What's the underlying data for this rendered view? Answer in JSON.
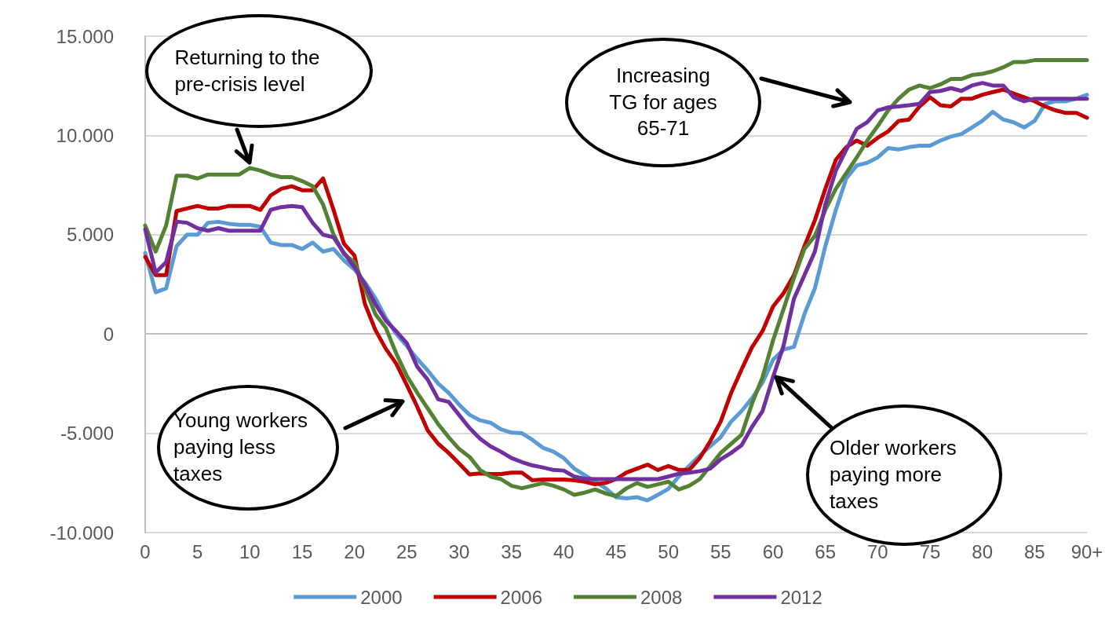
{
  "chart_data": {
    "type": "line",
    "categories": [
      "0",
      null,
      null,
      null,
      null,
      "5",
      null,
      null,
      null,
      null,
      "10",
      null,
      null,
      null,
      null,
      "15",
      null,
      null,
      null,
      null,
      "20",
      null,
      null,
      null,
      null,
      "25",
      null,
      null,
      null,
      null,
      "30",
      null,
      null,
      null,
      null,
      "35",
      null,
      null,
      null,
      null,
      "40",
      null,
      null,
      null,
      null,
      "45",
      null,
      null,
      null,
      null,
      "50",
      null,
      null,
      null,
      null,
      "55",
      null,
      null,
      null,
      null,
      "60",
      null,
      null,
      null,
      null,
      "65",
      null,
      null,
      null,
      null,
      "70",
      null,
      null,
      null,
      null,
      "75",
      null,
      null,
      null,
      null,
      "80",
      null,
      null,
      null,
      null,
      "85",
      null,
      null,
      null,
      null,
      "90+"
    ],
    "series": [
      {
        "name": "2000",
        "color": "#5b9bd5",
        "values": [
          4080,
          2100,
          2300,
          4420,
          5000,
          5000,
          5600,
          5650,
          5550,
          5500,
          5500,
          5400,
          4600,
          4480,
          4480,
          4280,
          4600,
          4150,
          4280,
          3700,
          3250,
          2600,
          1800,
          800,
          0,
          -600,
          -1260,
          -1840,
          -2500,
          -2960,
          -3560,
          -4070,
          -4350,
          -4470,
          -4800,
          -4970,
          -5000,
          -5330,
          -5730,
          -5920,
          -6250,
          -6780,
          -7110,
          -7440,
          -7770,
          -8220,
          -8280,
          -8220,
          -8380,
          -8100,
          -7800,
          -7180,
          -6640,
          -6120,
          -5650,
          -5200,
          -4410,
          -3880,
          -3230,
          -2440,
          -1300,
          -790,
          -650,
          1000,
          2300,
          4420,
          6250,
          7830,
          8490,
          8620,
          8890,
          9360,
          9290,
          9410,
          9480,
          9480,
          9740,
          9940,
          10070,
          10400,
          10730,
          11190,
          10800,
          10660,
          10400,
          10730,
          11590,
          11720,
          11720,
          11850,
          12050
        ]
      },
      {
        "name": "2006",
        "color": "#c00000",
        "values": [
          3880,
          2960,
          2960,
          6190,
          6320,
          6450,
          6320,
          6320,
          6450,
          6450,
          6450,
          6250,
          6980,
          7310,
          7440,
          7240,
          7240,
          7830,
          6250,
          4540,
          3950,
          1510,
          200,
          -750,
          -1500,
          -2570,
          -3670,
          -4860,
          -5530,
          -5990,
          -6520,
          -7070,
          -7020,
          -7050,
          -7050,
          -6980,
          -6980,
          -7370,
          -7330,
          -7330,
          -7330,
          -7370,
          -7440,
          -7570,
          -7500,
          -7310,
          -6980,
          -6780,
          -6580,
          -6850,
          -6650,
          -6850,
          -6850,
          -6250,
          -5400,
          -4410,
          -2960,
          -1780,
          -660,
          150,
          1380,
          2050,
          2960,
          4420,
          5730,
          7310,
          8770,
          9410,
          9740,
          9480,
          9880,
          10200,
          10730,
          10800,
          11460,
          11920,
          11520,
          11460,
          11850,
          11850,
          12050,
          12180,
          12310,
          12110,
          11920,
          11720,
          11460,
          11260,
          11130,
          11130,
          10890
        ]
      },
      {
        "name": "2008",
        "color": "#548235",
        "values": [
          5460,
          4150,
          5460,
          7970,
          7970,
          7830,
          8030,
          8030,
          8030,
          8030,
          8360,
          8230,
          8030,
          7900,
          7900,
          7700,
          7440,
          6520,
          5000,
          4020,
          3620,
          2300,
          1000,
          300,
          -990,
          -2110,
          -2960,
          -3750,
          -4540,
          -5200,
          -5790,
          -6190,
          -6850,
          -7180,
          -7310,
          -7640,
          -7770,
          -7640,
          -7510,
          -7640,
          -7830,
          -8100,
          -7990,
          -7830,
          -8030,
          -8160,
          -7770,
          -7510,
          -7700,
          -7570,
          -7440,
          -7830,
          -7640,
          -7310,
          -6650,
          -5990,
          -5530,
          -5070,
          -3490,
          -2170,
          -330,
          1250,
          2830,
          4280,
          4940,
          6250,
          7310,
          8100,
          8890,
          9740,
          10470,
          11260,
          11850,
          12310,
          12510,
          12380,
          12570,
          12840,
          12840,
          13040,
          13100,
          13230,
          13430,
          13690,
          13690,
          13790,
          13790,
          13790,
          13790,
          13790,
          13790
        ]
      },
      {
        "name": "2012",
        "color": "#7030a0",
        "values": [
          5270,
          3090,
          3620,
          5660,
          5600,
          5330,
          5200,
          5330,
          5200,
          5200,
          5200,
          5200,
          6250,
          6390,
          6450,
          6390,
          5600,
          5000,
          4870,
          4080,
          3360,
          2500,
          1500,
          670,
          130,
          -460,
          -1650,
          -2300,
          -3290,
          -3420,
          -4080,
          -4740,
          -5270,
          -5660,
          -5930,
          -6250,
          -6450,
          -6620,
          -6720,
          -6850,
          -6880,
          -7180,
          -7290,
          -7310,
          -7310,
          -7310,
          -7310,
          -7310,
          -7310,
          -7310,
          -7180,
          -7040,
          -6980,
          -6910,
          -6780,
          -6320,
          -5990,
          -5600,
          -4670,
          -3880,
          -2170,
          -600,
          1780,
          2960,
          4150,
          6520,
          8230,
          9280,
          10340,
          10660,
          11260,
          11410,
          11460,
          11520,
          11590,
          12180,
          12240,
          12380,
          12240,
          12510,
          12640,
          12510,
          12510,
          11920,
          11720,
          11850,
          11850,
          11850,
          11850,
          11850,
          11850
        ]
      }
    ],
    "ylim": [
      -10000,
      15000
    ],
    "yticks": [
      {
        "value": -10000,
        "label": "-10.000"
      },
      {
        "value": -5000,
        "label": "-5.000"
      },
      0,
      {
        "value": 5000,
        "label": "5.000"
      },
      {
        "value": 10000,
        "label": "10.000"
      },
      {
        "value": 15000,
        "label": "15.000"
      }
    ],
    "grid": "y",
    "legend": "bottom",
    "marker": "none",
    "line_style": "solid",
    "annotations": [
      "Returning to the pre-crisis level",
      "Increasing TG for ages 65-71",
      "Young workers paying less taxes",
      {
        "text": "Older workers paying more taxes",
        "x": "60",
        "y": -2170
      }
    ]
  }
}
